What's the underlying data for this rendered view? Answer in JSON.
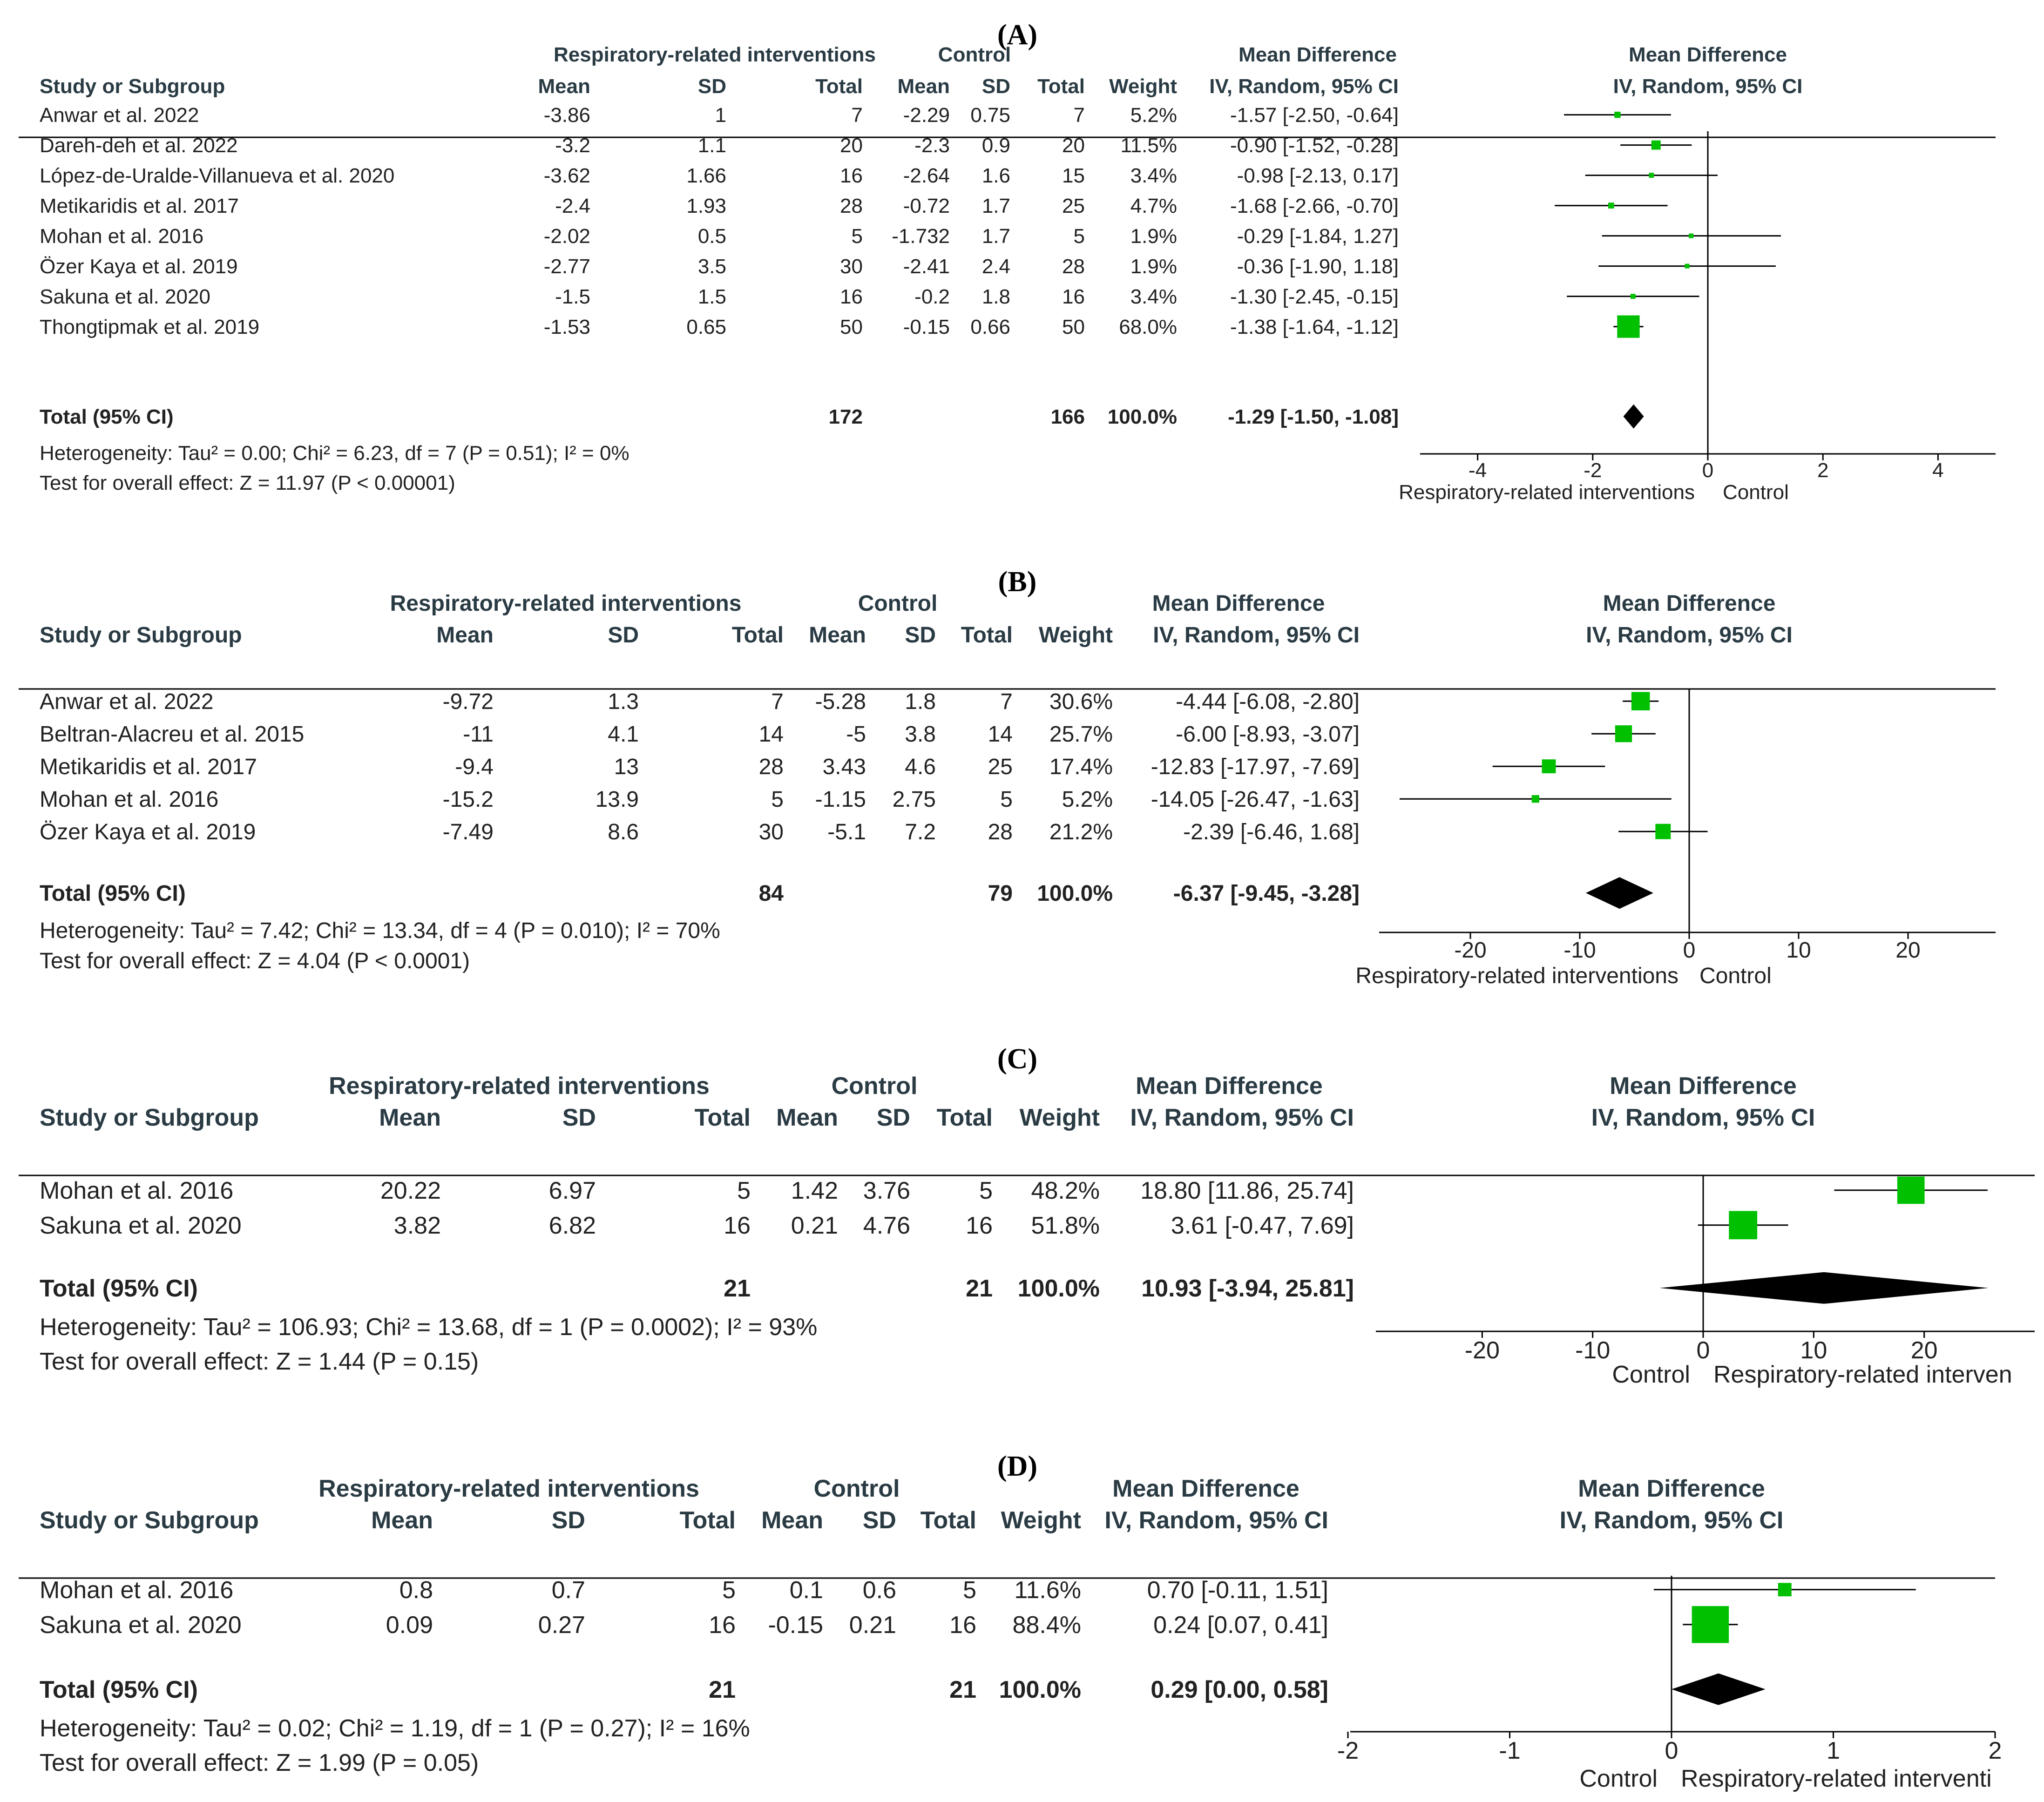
{
  "chart_data": [
    {
      "type": "forest",
      "panel_label": "(A)",
      "headers": {
        "study": "Study or Subgroup",
        "group1": "Respiratory-related interventions",
        "group2": "Control",
        "mean": "Mean",
        "sd": "SD",
        "total": "Total",
        "weight": "Weight",
        "md": "Mean Difference",
        "md_sub": "IV, Random, 95% CI"
      },
      "studies": [
        {
          "name": "Anwar et al. 2022",
          "m1": "-3.86",
          "sd1": "1",
          "n1": "7",
          "m2": "-2.29",
          "sd2": "0.75",
          "n2": "7",
          "weight": "5.2%",
          "ci_text": "-1.57 [-2.50, -0.64]",
          "md": -1.57,
          "lo": -2.5,
          "hi": -0.64,
          "w": 5.2
        },
        {
          "name": "Dareh-deh et al. 2022",
          "m1": "-3.2",
          "sd1": "1.1",
          "n1": "20",
          "m2": "-2.3",
          "sd2": "0.9",
          "n2": "20",
          "weight": "11.5%",
          "ci_text": "-0.90 [-1.52, -0.28]",
          "md": -0.9,
          "lo": -1.52,
          "hi": -0.28,
          "w": 11.5
        },
        {
          "name": "López-de-Uralde-Villanueva et al. 2020",
          "m1": "-3.62",
          "sd1": "1.66",
          "n1": "16",
          "m2": "-2.64",
          "sd2": "1.6",
          "n2": "15",
          "weight": "3.4%",
          "ci_text": "-0.98 [-2.13, 0.17]",
          "md": -0.98,
          "lo": -2.13,
          "hi": 0.17,
          "w": 3.4
        },
        {
          "name": "Metikaridis et al. 2017",
          "m1": "-2.4",
          "sd1": "1.93",
          "n1": "28",
          "m2": "-0.72",
          "sd2": "1.7",
          "n2": "25",
          "weight": "4.7%",
          "ci_text": "-1.68 [-2.66, -0.70]",
          "md": -1.68,
          "lo": -2.66,
          "hi": -0.7,
          "w": 4.7
        },
        {
          "name": "Mohan et al. 2016",
          "m1": "-2.02",
          "sd1": "0.5",
          "n1": "5",
          "m2": "-1.732",
          "sd2": "1.7",
          "n2": "5",
          "weight": "1.9%",
          "ci_text": "-0.29 [-1.84, 1.27]",
          "md": -0.29,
          "lo": -1.84,
          "hi": 1.27,
          "w": 1.9
        },
        {
          "name": "Özer Kaya et al. 2019",
          "m1": "-2.77",
          "sd1": "3.5",
          "n1": "30",
          "m2": "-2.41",
          "sd2": "2.4",
          "n2": "28",
          "weight": "1.9%",
          "ci_text": "-0.36 [-1.90, 1.18]",
          "md": -0.36,
          "lo": -1.9,
          "hi": 1.18,
          "w": 1.9
        },
        {
          "name": "Sakuna et al. 2020",
          "m1": "-1.5",
          "sd1": "1.5",
          "n1": "16",
          "m2": "-0.2",
          "sd2": "1.8",
          "n2": "16",
          "weight": "3.4%",
          "ci_text": "-1.30 [-2.45, -0.15]",
          "md": -1.3,
          "lo": -2.45,
          "hi": -0.15,
          "w": 3.4
        },
        {
          "name": "Thongtipmak et al. 2019",
          "m1": "-1.53",
          "sd1": "0.65",
          "n1": "50",
          "m2": "-0.15",
          "sd2": "0.66",
          "n2": "50",
          "weight": "68.0%",
          "ci_text": "-1.38 [-1.64, -1.12]",
          "md": -1.38,
          "lo": -1.64,
          "hi": -1.12,
          "w": 68.0
        }
      ],
      "total": {
        "label": "Total (95% CI)",
        "n1": "172",
        "n2": "166",
        "weight": "100.0%",
        "ci_text": "-1.29 [-1.50, -1.08]",
        "md": -1.29,
        "lo": -1.5,
        "hi": -1.08
      },
      "heterogeneity": "Heterogeneity: Tau² = 0.00; Chi² = 6.23, df = 7 (P = 0.51); I² = 0%",
      "overall": "Test for overall effect: Z = 11.97 (P < 0.00001)",
      "axis": {
        "min": -5,
        "max": 5,
        "ticks": [
          -4,
          -2,
          0,
          2,
          4
        ],
        "tick_labels": [
          "-4",
          "-2",
          "0",
          "2",
          "4"
        ]
      },
      "favours_left": "Respiratory-related interventions",
      "favours_right": "Control",
      "colors": {
        "square": "#00c000",
        "line": "#000000"
      }
    },
    {
      "type": "forest",
      "panel_label": "(B)",
      "headers": {
        "study": "Study or Subgroup",
        "group1": "Respiratory-related interventions",
        "group2": "Control",
        "mean": "Mean",
        "sd": "SD",
        "total": "Total",
        "weight": "Weight",
        "md": "Mean Difference",
        "md_sub": "IV, Random, 95% CI"
      },
      "studies": [
        {
          "name": "Anwar et al. 2022",
          "m1": "-9.72",
          "sd1": "1.3",
          "n1": "7",
          "m2": "-5.28",
          "sd2": "1.8",
          "n2": "7",
          "weight": "30.6%",
          "ci_text": "-4.44 [-6.08, -2.80]",
          "md": -4.44,
          "lo": -6.08,
          "hi": -2.8,
          "w": 30.6
        },
        {
          "name": "Beltran-Alacreu et al. 2015",
          "m1": "-11",
          "sd1": "4.1",
          "n1": "14",
          "m2": "-5",
          "sd2": "3.8",
          "n2": "14",
          "weight": "25.7%",
          "ci_text": "-6.00 [-8.93, -3.07]",
          "md": -6.0,
          "lo": -8.93,
          "hi": -3.07,
          "w": 25.7
        },
        {
          "name": "Metikaridis et al. 2017",
          "m1": "-9.4",
          "sd1": "13",
          "n1": "28",
          "m2": "3.43",
          "sd2": "4.6",
          "n2": "25",
          "weight": "17.4%",
          "ci_text": "-12.83 [-17.97, -7.69]",
          "md": -12.83,
          "lo": -17.97,
          "hi": -7.69,
          "w": 17.4
        },
        {
          "name": "Mohan et al. 2016",
          "m1": "-15.2",
          "sd1": "13.9",
          "n1": "5",
          "m2": "-1.15",
          "sd2": "2.75",
          "n2": "5",
          "weight": "5.2%",
          "ci_text": "-14.05 [-26.47, -1.63]",
          "md": -14.05,
          "lo": -26.47,
          "hi": -1.63,
          "w": 5.2
        },
        {
          "name": "Özer Kaya et al. 2019",
          "m1": "-7.49",
          "sd1": "8.6",
          "n1": "30",
          "m2": "-5.1",
          "sd2": "7.2",
          "n2": "28",
          "weight": "21.2%",
          "ci_text": "-2.39 [-6.46, 1.68]",
          "md": -2.39,
          "lo": -6.46,
          "hi": 1.68,
          "w": 21.2
        }
      ],
      "total": {
        "label": "Total (95% CI)",
        "n1": "84",
        "n2": "79",
        "weight": "100.0%",
        "ci_text": "-6.37 [-9.45, -3.28]",
        "md": -6.37,
        "lo": -9.45,
        "hi": -3.28
      },
      "heterogeneity": "Heterogeneity: Tau² = 7.42; Chi² = 13.34, df = 4 (P = 0.010); I² = 70%",
      "overall": "Test for overall effect: Z = 4.04 (P < 0.0001)",
      "axis": {
        "min": -28,
        "max": 28,
        "ticks": [
          -20,
          -10,
          0,
          10,
          20
        ],
        "tick_labels": [
          "-20",
          "-10",
          "0",
          "10",
          "20"
        ]
      },
      "favours_left": "Respiratory-related interventions",
      "favours_right": "Control",
      "colors": {
        "square": "#00c000",
        "line": "#000000"
      }
    },
    {
      "type": "forest",
      "panel_label": "(C)",
      "headers": {
        "study": "Study or Subgroup",
        "group1": "Respiratory-related interventions",
        "group2": "Control",
        "mean": "Mean",
        "sd": "SD",
        "total": "Total",
        "weight": "Weight",
        "md": "Mean Difference",
        "md_sub": "IV, Random, 95% CI"
      },
      "studies": [
        {
          "name": "Mohan et al. 2016",
          "m1": "20.22",
          "sd1": "6.97",
          "n1": "5",
          "m2": "1.42",
          "sd2": "3.76",
          "n2": "5",
          "weight": "48.2%",
          "ci_text": "18.80 [11.86, 25.74]",
          "md": 18.8,
          "lo": 11.86,
          "hi": 25.74,
          "w": 48.2
        },
        {
          "name": "Sakuna et al. 2020",
          "m1": "3.82",
          "sd1": "6.82",
          "n1": "16",
          "m2": "0.21",
          "sd2": "4.76",
          "n2": "16",
          "weight": "51.8%",
          "ci_text": "3.61 [-0.47, 7.69]",
          "md": 3.61,
          "lo": -0.47,
          "hi": 7.69,
          "w": 51.8
        }
      ],
      "total": {
        "label": "Total (95% CI)",
        "n1": "21",
        "n2": "21",
        "weight": "100.0%",
        "ci_text": "10.93 [-3.94, 25.81]",
        "md": 10.93,
        "lo": -3.94,
        "hi": 25.81
      },
      "heterogeneity": "Heterogeneity: Tau² = 106.93; Chi² = 13.68, df = 1 (P = 0.0002); I² = 93%",
      "overall": "Test for overall effect: Z = 1.44 (P = 0.15)",
      "axis": {
        "min": -30,
        "max": 30,
        "ticks": [
          -20,
          -10,
          0,
          10,
          20
        ],
        "tick_labels": [
          "-20",
          "-10",
          "0",
          "10",
          "20"
        ]
      },
      "favours_left": "Control",
      "favours_right": "Respiratory-related interven",
      "colors": {
        "square": "#00c000",
        "line": "#000000"
      }
    },
    {
      "type": "forest",
      "panel_label": "(D)",
      "headers": {
        "study": "Study or Subgroup",
        "group1": "Respiratory-related interventions",
        "group2": "Control",
        "mean": "Mean",
        "sd": "SD",
        "total": "Total",
        "weight": "Weight",
        "md": "Mean Difference",
        "md_sub": "IV, Random, 95% CI"
      },
      "studies": [
        {
          "name": "Mohan et al. 2016",
          "m1": "0.8",
          "sd1": "0.7",
          "n1": "5",
          "m2": "0.1",
          "sd2": "0.6",
          "n2": "5",
          "weight": "11.6%",
          "ci_text": "0.70 [-0.11, 1.51]",
          "md": 0.7,
          "lo": -0.11,
          "hi": 1.51,
          "w": 11.6
        },
        {
          "name": "Sakuna et al. 2020",
          "m1": "0.09",
          "sd1": "0.27",
          "n1": "16",
          "m2": "-0.15",
          "sd2": "0.21",
          "n2": "16",
          "weight": "88.4%",
          "ci_text": "0.24 [0.07, 0.41]",
          "md": 0.24,
          "lo": 0.07,
          "hi": 0.41,
          "w": 88.4
        }
      ],
      "total": {
        "label": "Total (95% CI)",
        "n1": "21",
        "n2": "21",
        "weight": "100.0%",
        "ci_text": "0.29 [0.00, 0.58]",
        "md": 0.29,
        "lo": 0.0,
        "hi": 0.58
      },
      "heterogeneity": "Heterogeneity: Tau² = 0.02; Chi² = 1.19, df = 1 (P = 0.27); I² = 16%",
      "overall": "Test for overall effect: Z = 1.99 (P = 0.05)",
      "axis": {
        "min": -2,
        "max": 2,
        "ticks": [
          -2,
          -1,
          0,
          1,
          2
        ],
        "tick_labels": [
          "-2",
          "-1",
          "0",
          "1",
          "2"
        ]
      },
      "favours_left": "Control",
      "favours_right": "Respiratory-related interventi",
      "colors": {
        "square": "#00c000",
        "line": "#000000"
      }
    }
  ]
}
